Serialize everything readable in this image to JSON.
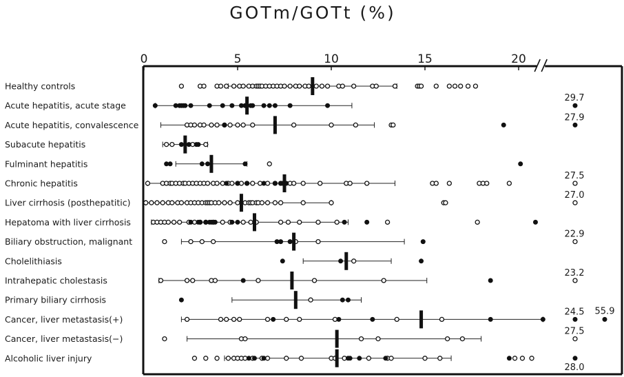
{
  "chart_data": {
    "type": "scatter",
    "title": "GOTm/GOTt (%)",
    "xlabel": "",
    "ylabel": "",
    "xlim": [
      0,
      22
    ],
    "x_ticks": [
      "0",
      "5",
      "10",
      "15",
      "20"
    ],
    "x_tick_values": [
      0,
      5,
      10,
      15,
      20
    ],
    "axis_break_after": 21,
    "marker_legend": {
      "open": "open circle",
      "filled": "filled circle"
    },
    "rows": [
      {
        "label": "Healthy controls",
        "mean": 9.0,
        "range": [
          4.5,
          13.5
        ],
        "open": [
          2.0,
          3.0,
          3.2,
          3.9,
          4.1,
          4.4,
          4.8,
          5.1,
          5.3,
          5.6,
          5.8,
          6.0,
          6.1,
          6.2,
          6.3,
          6.5,
          6.7,
          6.9,
          7.1,
          7.3,
          7.5,
          7.8,
          8.1,
          8.3,
          8.6,
          8.8,
          9.2,
          9.5,
          9.8,
          10.4,
          10.6,
          11.2,
          12.2,
          12.4,
          13.4,
          14.6,
          14.7,
          14.8,
          15.6,
          16.3,
          16.6,
          16.9,
          17.3,
          17.7
        ],
        "filled": [],
        "offscale_open": [],
        "offscale_filled": []
      },
      {
        "label": "Acute hepatitis, acute stage",
        "mean": 5.5,
        "range": [
          0.6,
          11.1
        ],
        "open": [],
        "filled": [
          0.6,
          1.7,
          1.9,
          2.0,
          2.1,
          2.2,
          2.5,
          3.5,
          4.2,
          4.7,
          5.2,
          5.4,
          5.5,
          5.7,
          5.8,
          6.4,
          6.7,
          7.0,
          7.8,
          9.8
        ],
        "offscale_open": [],
        "offscale_filled": [
          {
            "value": 29.7,
            "label": "29.7"
          }
        ]
      },
      {
        "label": "Acute hepatitis, convalescence",
        "mean": 7.0,
        "range": [
          0.9,
          12.3
        ],
        "open": [
          2.3,
          2.5,
          2.7,
          3.0,
          3.2,
          3.6,
          3.9,
          4.3,
          4.6,
          5.0,
          5.3,
          5.8,
          8.0,
          10.0,
          11.3,
          13.2,
          13.3
        ],
        "filled": [
          4.3,
          19.2
        ],
        "offscale_open": [],
        "offscale_filled": [
          {
            "value": 27.9,
            "label": "27.9"
          }
        ]
      },
      {
        "label": "Subacute hepatitis",
        "mean": 2.2,
        "range": [
          1.0,
          3.4
        ],
        "open": [
          1.2,
          1.5,
          2.6,
          3.3
        ],
        "filled": [
          2.0,
          2.4,
          2.8,
          2.9
        ],
        "offscale_open": [],
        "offscale_filled": []
      },
      {
        "label": "Fulminant hepatitis",
        "mean": 3.6,
        "range": [
          1.7,
          5.5
        ],
        "open": [
          6.7
        ],
        "filled": [
          1.2,
          1.4,
          3.1,
          3.4,
          5.4,
          20.1
        ],
        "offscale_open": [],
        "offscale_filled": []
      },
      {
        "label": "Chronic hepatitis",
        "mean": 7.5,
        "range": [
          0.2,
          13.4
        ],
        "open": [
          0.2,
          1.0,
          1.2,
          1.4,
          1.5,
          1.7,
          1.9,
          2.1,
          2.2,
          2.4,
          2.6,
          2.8,
          3.0,
          3.2,
          3.4,
          3.7,
          3.9,
          4.2,
          4.5,
          4.7,
          5.0,
          5.2,
          5.5,
          5.8,
          6.2,
          6.6,
          7.0,
          7.3,
          7.8,
          8.0,
          8.5,
          9.4,
          10.8,
          11.0,
          11.9,
          15.4,
          15.6,
          16.3,
          17.9,
          18.1,
          18.3,
          19.5
        ],
        "filled": [
          4.4,
          5.0,
          5.5,
          6.4,
          7.0,
          7.3,
          7.4,
          7.6
        ],
        "offscale_open": [
          {
            "value": 27.5,
            "label": "27.5"
          }
        ],
        "offscale_filled": []
      },
      {
        "label": "Liver cirrhosis (posthepatitic)",
        "mean": 5.2,
        "range": [
          0.1,
          10.0
        ],
        "open": [
          0.1,
          0.4,
          0.7,
          1.0,
          1.3,
          1.5,
          1.8,
          2.0,
          2.3,
          2.5,
          2.7,
          2.9,
          3.1,
          3.3,
          3.4,
          3.5,
          3.6,
          3.8,
          4.0,
          4.3,
          4.6,
          5.0,
          5.4,
          5.6,
          5.7,
          5.8,
          6.0,
          6.1,
          6.3,
          6.6,
          7.0,
          7.3,
          8.5,
          10.0,
          16.0,
          16.1
        ],
        "filled": [],
        "offscale_open": [
          {
            "value": 27.0,
            "label": "27.0"
          }
        ],
        "offscale_filled": []
      },
      {
        "label": "Hepatoma with liver cirrhosis",
        "mean": 5.9,
        "range": [
          0.4,
          10.9
        ],
        "open": [
          0.5,
          0.7,
          0.9,
          1.1,
          1.3,
          1.6,
          1.9,
          2.4,
          2.7,
          3.0,
          3.3,
          3.7,
          4.2,
          4.6,
          5.3,
          5.7,
          6.0,
          7.3,
          7.7,
          8.3,
          9.3,
          10.3,
          13.0,
          17.8
        ],
        "filled": [
          2.5,
          2.9,
          3.0,
          3.3,
          3.5,
          3.6,
          3.8,
          4.7,
          5.0,
          10.7,
          11.9,
          20.9
        ],
        "offscale_open": [],
        "offscale_filled": []
      },
      {
        "label": "Biliary obstruction, malignant",
        "mean": 8.0,
        "range": [
          2.0,
          13.9
        ],
        "open": [
          1.1,
          2.5,
          3.1,
          3.7,
          8.1,
          9.3
        ],
        "filled": [
          7.1,
          7.3,
          7.8,
          14.9
        ],
        "offscale_open": [
          {
            "value": 22.9,
            "label": "22.9"
          }
        ],
        "offscale_filled": []
      },
      {
        "label": "Cholelithiasis",
        "mean": 10.8,
        "range": [
          8.5,
          13.2
        ],
        "open": [
          11.2
        ],
        "filled": [
          7.4,
          10.5,
          14.8
        ],
        "offscale_open": [],
        "offscale_filled": []
      },
      {
        "label": "Intrahepatic cholestasis",
        "mean": 7.9,
        "range": [
          0.8,
          15.1
        ],
        "open": [
          0.9,
          2.3,
          2.6,
          3.6,
          3.8,
          6.1,
          9.1,
          12.8
        ],
        "filled": [
          5.3,
          18.5
        ],
        "offscale_open": [
          {
            "value": 23.2,
            "label": "23.2"
          }
        ],
        "offscale_filled": []
      },
      {
        "label": "Primary biliary cirrhosis",
        "mean": 8.1,
        "range": [
          4.7,
          11.6
        ],
        "open": [
          8.9
        ],
        "filled": [
          2.0,
          10.6,
          10.9
        ],
        "offscale_open": [],
        "offscale_filled": []
      },
      {
        "label": "Cancer, liver metastasis(+)",
        "mean": 14.8,
        "range": [
          2.0,
          21.3
        ],
        "open": [
          2.3,
          4.1,
          4.4,
          4.8,
          5.1,
          6.6,
          7.6,
          8.3,
          10.2,
          13.5,
          15.9
        ],
        "filled": [
          6.9,
          10.4,
          12.2,
          18.5,
          21.3
        ],
        "offscale_open": [],
        "offscale_filled": [
          {
            "value": 24.5,
            "label": "24.5"
          },
          {
            "value": 55.9,
            "label": "55.9"
          }
        ]
      },
      {
        "label": "Cancer, liver metastasis(−)",
        "mean": 10.3,
        "range": [
          2.3,
          18.0
        ],
        "open": [
          1.1,
          5.2,
          5.4,
          11.6,
          12.5,
          16.2,
          17.0
        ],
        "filled": [],
        "offscale_open": [
          {
            "value": 27.5,
            "label": "27.5"
          }
        ],
        "offscale_filled": []
      },
      {
        "label": "Alcoholic liver injury",
        "mean": 10.3,
        "range": [
          4.3,
          16.4
        ],
        "open": [
          2.7,
          3.3,
          3.9,
          4.5,
          4.8,
          5.0,
          5.2,
          5.4,
          5.8,
          6.3,
          6.6,
          7.6,
          8.4,
          10.0,
          10.2,
          10.7,
          12.0,
          13.0,
          13.2,
          15.0,
          15.8,
          19.8,
          20.2,
          20.7
        ],
        "filled": [
          5.6,
          5.9,
          6.4,
          10.9,
          11.0,
          11.5,
          12.9,
          19.5
        ],
        "offscale_open": [],
        "offscale_filled": [
          {
            "value": 28.0,
            "label": "28.0"
          }
        ]
      }
    ]
  }
}
